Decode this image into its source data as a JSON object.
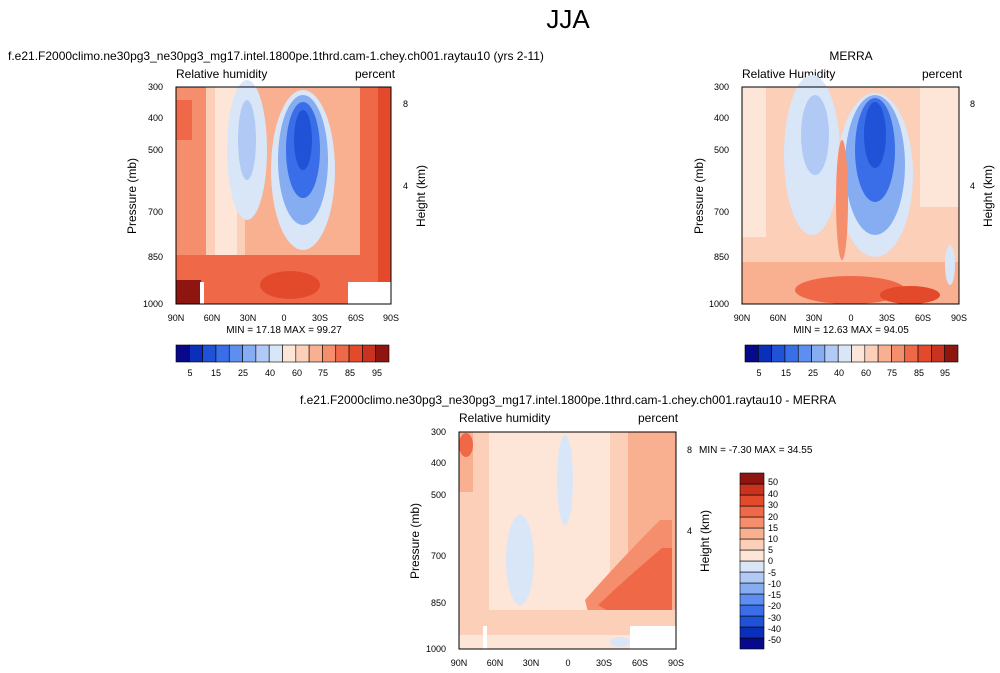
{
  "figure": {
    "title": "JJA"
  },
  "colors": {
    "rh_palette": [
      "#08088a",
      "#0a2fb8",
      "#1f52d6",
      "#3a6ee8",
      "#5e8ef0",
      "#86acf2",
      "#b0caf5",
      "#d8e6f8",
      "#fde6d8",
      "#fbcfb8",
      "#f9b090",
      "#f58e6c",
      "#ef6848",
      "#e34a2c",
      "#c8321e",
      "#8f1610"
    ],
    "diff_palette": [
      "#08088a",
      "#0a2fb8",
      "#1f52d6",
      "#3a6ee8",
      "#5e8ef0",
      "#86acf2",
      "#b0caf5",
      "#d8e6f8",
      "#fde6d8",
      "#fbcfb8",
      "#f9b090",
      "#f58e6c",
      "#ef6848",
      "#e34a2c",
      "#c8321e",
      "#8f1610"
    ],
    "missing": "#ffffff"
  },
  "chart_data": [
    {
      "type": "heatmap",
      "title": "f.e21.F2000climo.ne30pg3_ne30pg3_mg17.intel.1800pe.1thrd.cam-1.chey.ch001.raytau10 (yrs 2-11)",
      "variable_label": "Relative humidity",
      "units_label": "percent",
      "ylabel": "Pressure (mb)",
      "ylabel_right": "Height (km)",
      "x_ticks": [
        "90N",
        "60N",
        "30N",
        "0",
        "30S",
        "60S",
        "90S"
      ],
      "y_ticks": [
        "300",
        "400",
        "500",
        "700",
        "850",
        "1000"
      ],
      "y_right_ticks": [
        "8",
        "4"
      ],
      "stats_text": "MIN = 17.18  MAX = 99.27",
      "colorbar_labels": [
        "5",
        "15",
        "25",
        "40",
        "60",
        "75",
        "85",
        "95"
      ]
    },
    {
      "type": "heatmap",
      "title": "MERRA",
      "variable_label": "Relative Humidity",
      "units_label": "percent",
      "ylabel": "Pressure (mb)",
      "ylabel_right": "Height (km)",
      "x_ticks": [
        "90N",
        "60N",
        "30N",
        "0",
        "30S",
        "60S",
        "90S"
      ],
      "y_ticks": [
        "300",
        "400",
        "500",
        "700",
        "850",
        "1000"
      ],
      "y_right_ticks": [
        "8",
        "4"
      ],
      "stats_text": "MIN = 12.63  MAX = 94.05",
      "colorbar_labels": [
        "5",
        "15",
        "25",
        "40",
        "60",
        "75",
        "85",
        "95"
      ]
    },
    {
      "type": "heatmap",
      "title": "f.e21.F2000climo.ne30pg3_ne30pg3_mg17.intel.1800pe.1thrd.cam-1.chey.ch001.raytau10 - MERRA",
      "variable_label": "Relative humidity",
      "units_label": "percent",
      "ylabel": "Pressure (mb)",
      "ylabel_right": "Height (km)",
      "x_ticks": [
        "90N",
        "60N",
        "30N",
        "0",
        "30S",
        "60S",
        "90S"
      ],
      "y_ticks": [
        "300",
        "400",
        "500",
        "700",
        "850",
        "1000"
      ],
      "y_right_ticks": [
        "8",
        "4"
      ],
      "stats_text": "MIN = -7.30  MAX = 34.55",
      "colorbar_labels": [
        "50",
        "40",
        "30",
        "20",
        "15",
        "10",
        "5",
        "0",
        "-5",
        "-10",
        "-15",
        "-20",
        "-30",
        "-40",
        "-50"
      ]
    }
  ]
}
